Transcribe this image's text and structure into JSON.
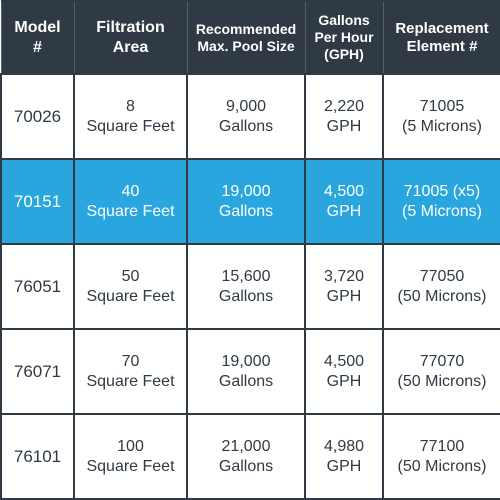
{
  "header": {
    "model": [
      "Model",
      "#"
    ],
    "area": [
      "Filtration",
      "Area"
    ],
    "pool_size": [
      "Recommended",
      "Max. Pool Size"
    ],
    "gph": [
      "Gallons",
      "Per Hour",
      "(GPH)"
    ],
    "element": [
      "Replacement",
      "Element #"
    ]
  },
  "rows": [
    {
      "model": "70026",
      "area": [
        "8",
        "Square Feet"
      ],
      "pool_size": [
        "9,000",
        "Gallons"
      ],
      "gph": [
        "2,220",
        "GPH"
      ],
      "element": [
        "71005",
        "(5 Microns)"
      ],
      "highlighted": false
    },
    {
      "model": "70151",
      "area": [
        "40",
        "Square Feet"
      ],
      "pool_size": [
        "19,000",
        "Gallons"
      ],
      "gph": [
        "4,500",
        "GPH"
      ],
      "element": [
        "71005 (x5)",
        "(5 Microns)"
      ],
      "highlighted": true
    },
    {
      "model": "76051",
      "area": [
        "50",
        "Square Feet"
      ],
      "pool_size": [
        "15,600",
        "Gallons"
      ],
      "gph": [
        "3,720",
        "GPH"
      ],
      "element": [
        "77050",
        "(50 Microns)"
      ],
      "highlighted": false
    },
    {
      "model": "76071",
      "area": [
        "70",
        "Square Feet"
      ],
      "pool_size": [
        "19,000",
        "Gallons"
      ],
      "gph": [
        "4,500",
        "GPH"
      ],
      "element": [
        "77070",
        "(50 Microns)"
      ],
      "highlighted": false
    },
    {
      "model": "76101",
      "area": [
        "100",
        "Square Feet"
      ],
      "pool_size": [
        "21,000",
        "Gallons"
      ],
      "gph": [
        "4,980",
        "GPH"
      ],
      "element": [
        "77100",
        "(50 Microns)"
      ],
      "highlighted": false
    }
  ],
  "colors": {
    "header_bg": "#2f3a44",
    "text": "#2f3a44",
    "highlight_bg": "#2aa6de",
    "grid": "#2f3a44"
  }
}
